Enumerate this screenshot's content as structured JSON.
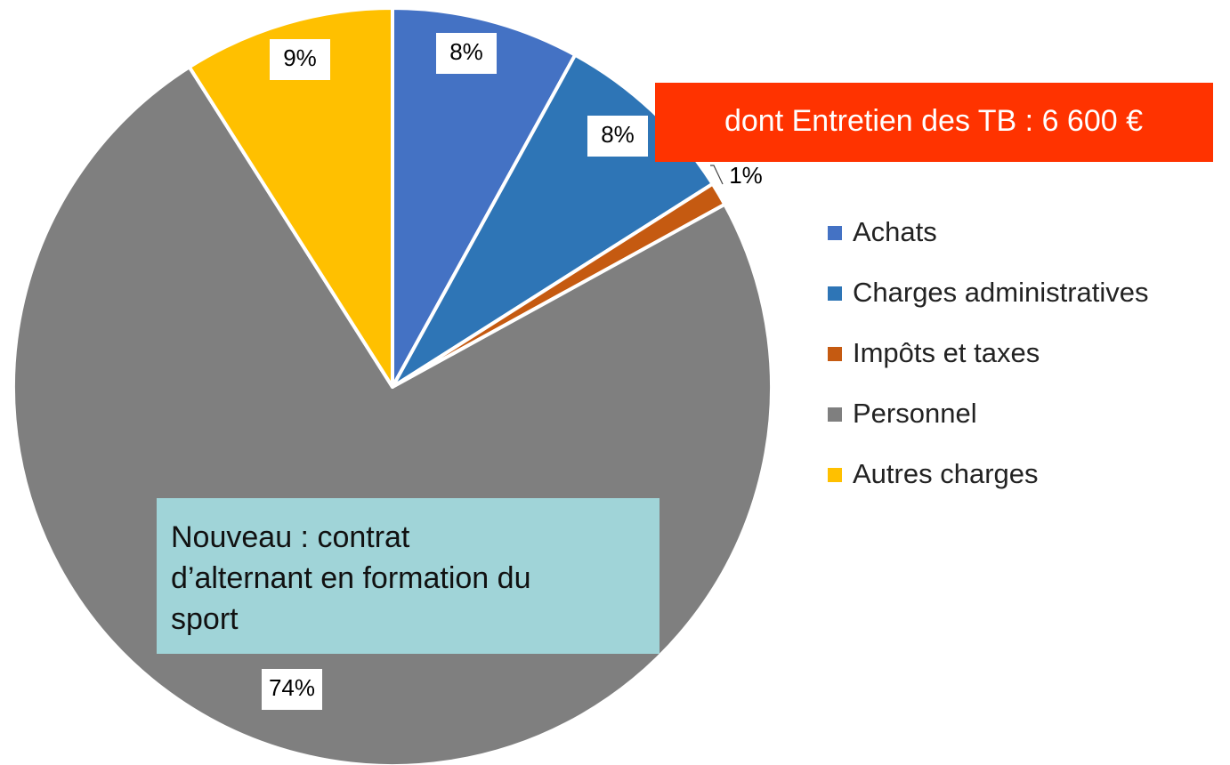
{
  "chart_data": {
    "type": "pie",
    "categories": [
      "Achats",
      "Charges administratives",
      "Impôts et taxes",
      "Personnel",
      "Autres charges"
    ],
    "values": [
      8,
      8,
      1,
      74,
      9
    ],
    "value_labels": [
      "8%",
      "8%",
      "1%",
      "74%",
      "9%"
    ],
    "colors": [
      "#4472c4",
      "#2e75b6",
      "#c55a11",
      "#7f7f7f",
      "#ffc000"
    ],
    "legend": "right",
    "annotations": [
      {
        "lines": [
          "dont Entretien des TB : 6 600 €"
        ]
      },
      {
        "lines": [
          "Nouveau : contrat",
          "d’alternant en formation du",
          "sport"
        ]
      }
    ]
  }
}
